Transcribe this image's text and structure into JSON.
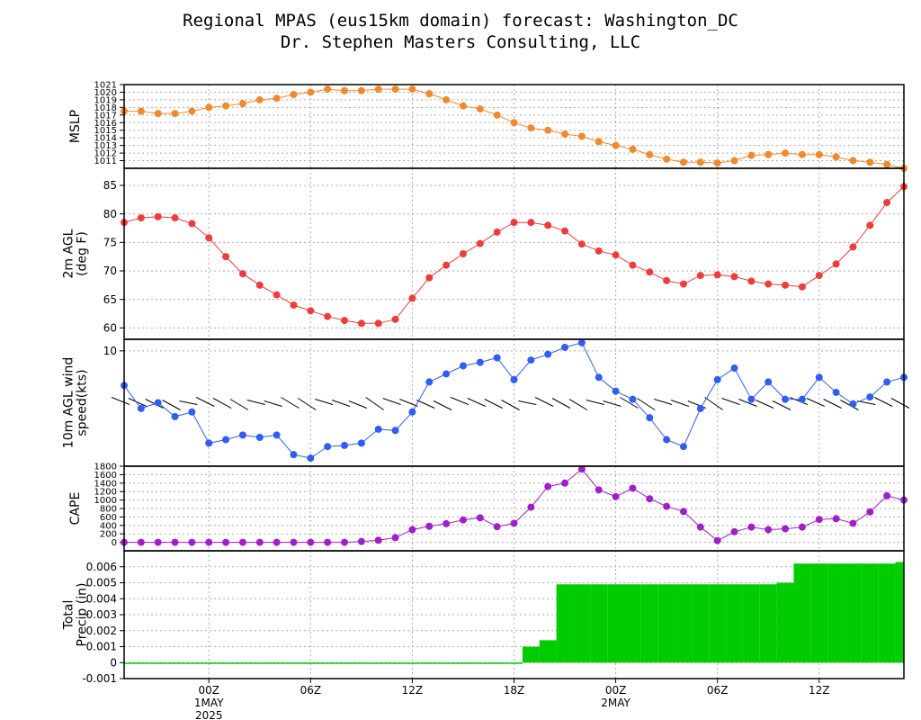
{
  "title_line1": "Regional MPAS (eus15km domain) forecast: Washington_DC",
  "title_line2": "Dr. Stephen Masters Consulting, LLC",
  "x_axis": {
    "ticks": [
      {
        "hour": 5,
        "label": "00Z",
        "sub1": "1MAY",
        "sub2": "2025"
      },
      {
        "hour": 11,
        "label": "06Z",
        "sub1": "",
        "sub2": ""
      },
      {
        "hour": 17,
        "label": "12Z",
        "sub1": "",
        "sub2": ""
      },
      {
        "hour": 23,
        "label": "18Z",
        "sub1": "",
        "sub2": ""
      },
      {
        "hour": 29,
        "label": "00Z",
        "sub1": "2MAY",
        "sub2": ""
      },
      {
        "hour": 35,
        "label": "06Z",
        "sub1": "",
        "sub2": ""
      },
      {
        "hour": 41,
        "label": "12Z",
        "sub1": "",
        "sub2": ""
      }
    ],
    "range": [
      0,
      46
    ]
  },
  "chart_data": [
    {
      "type": "line",
      "ylabel": [
        "MSLP"
      ],
      "color": "#f08a2c",
      "ylim": [
        1010,
        1021
      ],
      "yticks": [
        1011,
        1012,
        1013,
        1014,
        1015,
        1016,
        1017,
        1018,
        1019,
        1020,
        1021
      ],
      "grid": true,
      "x": [
        0,
        1,
        2,
        3,
        4,
        5,
        6,
        7,
        8,
        9,
        10,
        11,
        12,
        13,
        14,
        15,
        16,
        17,
        18,
        19,
        20,
        21,
        22,
        23,
        24,
        25,
        26,
        27,
        28,
        29,
        30,
        31,
        32,
        33,
        34,
        35,
        36,
        37,
        38,
        39,
        40,
        41,
        42,
        43,
        44,
        45,
        46
      ],
      "values": [
        1017.5,
        1017.5,
        1017.2,
        1017.2,
        1017.5,
        1018.0,
        1018.2,
        1018.5,
        1019.0,
        1019.2,
        1019.7,
        1020.0,
        1020.4,
        1020.2,
        1020.2,
        1020.4,
        1020.4,
        1020.4,
        1019.8,
        1019.0,
        1018.2,
        1017.8,
        1017.0,
        1016.0,
        1015.3,
        1015.0,
        1014.5,
        1014.2,
        1013.5,
        1013.0,
        1012.5,
        1011.8,
        1011.2,
        1010.8,
        1010.8,
        1010.7,
        1011.0,
        1011.7,
        1011.8,
        1012.0,
        1011.8,
        1011.8,
        1011.5,
        1011.0,
        1010.8,
        1010.5,
        1010.0
      ]
    },
    {
      "type": "line",
      "ylabel": [
        "2m AGL",
        "(deg F)"
      ],
      "color": "#ee3c3c",
      "ylim": [
        58,
        88
      ],
      "yticks": [
        60,
        65,
        70,
        75,
        80,
        85
      ],
      "grid": true,
      "x": [
        0,
        1,
        2,
        3,
        4,
        5,
        6,
        7,
        8,
        9,
        10,
        11,
        12,
        13,
        14,
        15,
        16,
        17,
        18,
        19,
        20,
        21,
        22,
        23,
        24,
        25,
        26,
        27,
        28,
        29,
        30,
        31,
        32,
        33,
        34,
        35,
        36,
        37,
        38,
        39,
        40,
        41,
        42,
        43,
        44,
        45,
        46
      ],
      "values": [
        78.5,
        79.3,
        79.5,
        79.3,
        78.3,
        75.8,
        72.5,
        69.5,
        67.5,
        65.8,
        64.0,
        63.0,
        62.0,
        61.3,
        60.8,
        60.8,
        61.5,
        65.2,
        68.8,
        71.0,
        73.0,
        74.8,
        76.8,
        78.5,
        78.5,
        78.0,
        77.0,
        74.7,
        73.5,
        72.8,
        71.0,
        69.8,
        68.3,
        67.7,
        69.2,
        69.3,
        69.0,
        68.2,
        67.7,
        67.5,
        67.2,
        69.2,
        71.2,
        74.2,
        78.0,
        82.0,
        84.8
      ]
    },
    {
      "type": "line",
      "ylabel": [
        "10m AGL wind",
        "speed(kts)"
      ],
      "color": "#2f5ef0",
      "ylim": [
        0,
        11
      ],
      "yticks": [
        10
      ],
      "grid": true,
      "barbs": true,
      "x": [
        0,
        1,
        2,
        3,
        4,
        5,
        6,
        7,
        8,
        9,
        10,
        11,
        12,
        13,
        14,
        15,
        16,
        17,
        18,
        19,
        20,
        21,
        22,
        23,
        24,
        25,
        26,
        27,
        28,
        29,
        30,
        31,
        32,
        33,
        34,
        35,
        36,
        37,
        38,
        39,
        40,
        41,
        42,
        43,
        44,
        45,
        46
      ],
      "values": [
        7.0,
        5.0,
        5.5,
        4.3,
        4.7,
        2.0,
        2.3,
        2.7,
        2.5,
        2.7,
        1.0,
        0.7,
        1.7,
        1.8,
        2.0,
        3.2,
        3.1,
        4.7,
        7.3,
        8.0,
        8.7,
        9.0,
        9.4,
        7.5,
        9.2,
        9.7,
        10.3,
        10.7,
        7.7,
        6.5,
        5.8,
        4.2,
        2.3,
        1.7,
        5.0,
        7.5,
        8.5,
        5.8,
        7.3,
        5.8,
        5.8,
        7.7,
        6.4,
        5.4,
        6.0,
        7.3,
        7.7
      ]
    },
    {
      "type": "line",
      "ylabel": [
        "CAPE"
      ],
      "color": "#a020c8",
      "ylim": [
        -200,
        1800
      ],
      "yticks": [
        0,
        200,
        400,
        600,
        800,
        1000,
        1200,
        1400,
        1600,
        1800
      ],
      "grid": true,
      "x": [
        0,
        1,
        2,
        3,
        4,
        5,
        6,
        7,
        8,
        9,
        10,
        11,
        12,
        13,
        14,
        15,
        16,
        17,
        18,
        19,
        20,
        21,
        22,
        23,
        24,
        25,
        26,
        27,
        28,
        29,
        30,
        31,
        32,
        33,
        34,
        35,
        36,
        37,
        38,
        39,
        40,
        41,
        42,
        43,
        44,
        45,
        46
      ],
      "values": [
        0,
        0,
        0,
        0,
        0,
        0,
        0,
        0,
        0,
        0,
        0,
        0,
        0,
        0,
        20,
        50,
        110,
        300,
        380,
        440,
        530,
        580,
        370,
        450,
        830,
        1320,
        1400,
        1730,
        1240,
        1080,
        1280,
        1030,
        850,
        730,
        360,
        40,
        250,
        360,
        300,
        320,
        360,
        540,
        560,
        450,
        720,
        1100,
        1000
      ]
    },
    {
      "type": "area",
      "ylabel": [
        "Total",
        "Precip (in)"
      ],
      "color": "#00cc00",
      "ylim": [
        -0.001,
        0.007
      ],
      "yticks": [
        -0.001,
        0,
        0.001,
        0.002,
        0.003,
        0.004,
        0.005,
        0.006
      ],
      "ytick_labels": [
        "-0.001",
        "0",
        "0.001",
        "0.002",
        "0.003",
        "0.004",
        "0.005",
        "0.006"
      ],
      "grid": true,
      "x": [
        0,
        1,
        2,
        3,
        4,
        5,
        6,
        7,
        8,
        9,
        10,
        11,
        12,
        13,
        14,
        15,
        16,
        17,
        18,
        19,
        20,
        21,
        22,
        23,
        24,
        25,
        26,
        27,
        28,
        29,
        30,
        31,
        32,
        33,
        34,
        35,
        36,
        37,
        38,
        39,
        40,
        41,
        42,
        43,
        44,
        45,
        46
      ],
      "values": [
        0,
        0,
        0,
        0,
        0,
        0,
        0,
        0,
        0,
        0,
        0,
        0,
        0,
        0,
        0,
        0,
        0,
        0,
        0,
        0,
        0,
        0,
        0,
        0,
        0.001,
        0.0014,
        0.0049,
        0.0049,
        0.0049,
        0.0049,
        0.0049,
        0.0049,
        0.0049,
        0.0049,
        0.0049,
        0.0049,
        0.0049,
        0.0049,
        0.0049,
        0.005,
        0.0062,
        0.0062,
        0.0062,
        0.0062,
        0.0062,
        0.0062,
        0.0063
      ]
    }
  ]
}
